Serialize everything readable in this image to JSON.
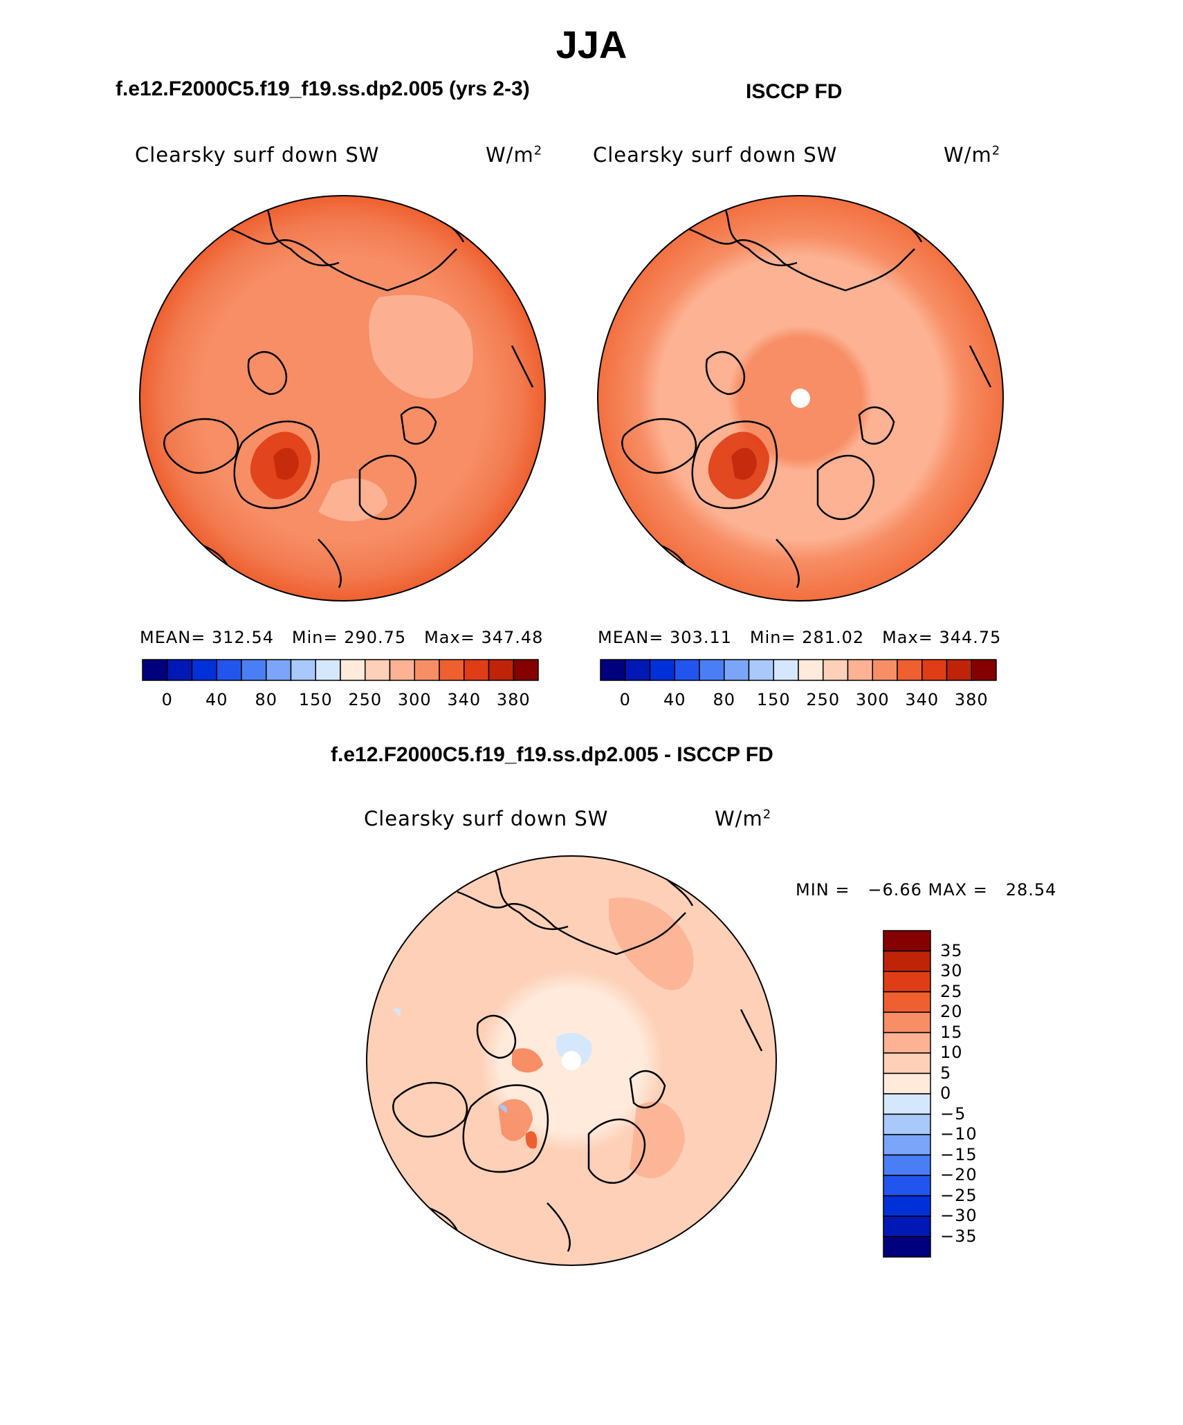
{
  "title": "JJA",
  "panels": [
    {
      "subtitle": "f.e12.F2000C5.f19_f19.ss.dp2.005 (yrs 2-3)",
      "variable": "Clearsky surf down SW",
      "units": "W/m",
      "units_exp": "2",
      "mean_label": "MEAN=",
      "mean": "312.54",
      "min_label": "Min=",
      "min": "290.75",
      "max_label": "Max=",
      "max": "347.48"
    },
    {
      "subtitle": "ISCCP FD",
      "variable": "Clearsky surf down SW",
      "units": "W/m",
      "units_exp": "2",
      "mean_label": "MEAN=",
      "mean": "303.11",
      "min_label": "Min=",
      "min": "281.02",
      "max_label": "Max=",
      "max": "344.75"
    }
  ],
  "diff": {
    "subtitle": "f.e12.F2000C5.f19_f19.ss.dp2.005 - ISCCP FD",
    "variable": "Clearsky surf down SW",
    "units": "W/m",
    "units_exp": "2",
    "minmax_text": "MIN =   −6.66 MAX =   28.54"
  },
  "chart_data": [
    {
      "type": "heatmap",
      "projection": "north-polar-stereographic",
      "title": "Clearsky surf down SW",
      "units": "W/m2",
      "stats": {
        "mean": 312.54,
        "min": 290.75,
        "max": 347.48
      },
      "colorbar_ticks": [
        "0",
        "40",
        "80",
        "150",
        "250",
        "300",
        "340",
        "380"
      ],
      "colorbar_colors": [
        "#00007f",
        "#0018b4",
        "#0031d8",
        "#2155ee",
        "#4a7ef5",
        "#7ba5f9",
        "#a9c8fb",
        "#d5e7fd",
        "#ffeadc",
        "#fdd0b7",
        "#fcb293",
        "#f78e66",
        "#ee6030",
        "#df3d15",
        "#bf2409",
        "#850000"
      ],
      "field": {
        "pole": 315,
        "low_latitude": 340,
        "greenland_peak": 347,
        "pacific_sector": 295
      }
    },
    {
      "type": "heatmap",
      "projection": "north-polar-stereographic",
      "title": "Clearsky surf down SW",
      "units": "W/m2",
      "stats": {
        "mean": 303.11,
        "min": 281.02,
        "max": 344.75
      },
      "colorbar_ticks": [
        "0",
        "40",
        "80",
        "150",
        "250",
        "300",
        "340",
        "380"
      ],
      "field": {
        "pole": 310,
        "arctic_ring": 290,
        "low_latitude": 325,
        "greenland_peak": 344
      }
    },
    {
      "type": "heatmap",
      "projection": "north-polar-stereographic",
      "title": "Clearsky surf down SW",
      "units": "W/m2",
      "stats": {
        "min": -6.66,
        "max": 28.54
      },
      "colorbar_ticks": [
        "35",
        "30",
        "25",
        "20",
        "15",
        "10",
        "5",
        "0",
        "−5",
        "−10",
        "−15",
        "−20",
        "−25",
        "−30",
        "−35"
      ],
      "colorbar_colors": [
        "#850000",
        "#bf2409",
        "#df3d15",
        "#ee6030",
        "#f78e66",
        "#fcb293",
        "#fdd0b7",
        "#ffeadc",
        "#d5e7fd",
        "#a9c8fb",
        "#7ba5f9",
        "#4a7ef5",
        "#2155ee",
        "#0031d8",
        "#0018b4",
        "#00007f"
      ],
      "field": {
        "pole": 0,
        "arctic": 5,
        "midlat": 10,
        "greenland_peak": 28
      }
    }
  ]
}
